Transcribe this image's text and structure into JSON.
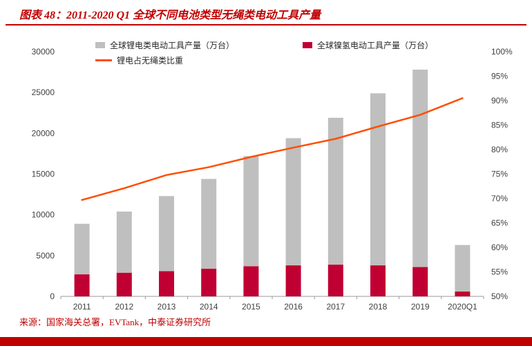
{
  "header": {
    "title": "图表 48：2011-2020 Q1 全球不同电池类型无绳类电动工具产量"
  },
  "footer": {
    "source": "来源：国家海关总署，EVTank，中泰证券研究所"
  },
  "colors": {
    "title_red": "#C00000",
    "rule_red": "#C00000",
    "footer_bar_red": "#C00000",
    "bar_gray": "#BFBFBF",
    "bar_crimson": "#C00032",
    "line_orange": "#FF4E00",
    "axis_text": "#404040"
  },
  "chart_data": {
    "type": "bar",
    "subtype": "stacked-bar-with-overlay-line",
    "title": "图表 48：2011-2020 Q1 全球不同电池类型无绳类电动工具产量",
    "categories": [
      "2011",
      "2012",
      "2013",
      "2014",
      "2015",
      "2016",
      "2017",
      "2018",
      "2019",
      "2020Q1"
    ],
    "series": [
      {
        "name": "全球锂电类电动工具产量（万台）",
        "type": "bar",
        "stack_order": "top",
        "axis": "left",
        "color": "#BFBFBF",
        "values": [
          6200,
          7500,
          9200,
          11000,
          13500,
          15600,
          18000,
          21100,
          24200,
          5700
        ]
      },
      {
        "name": "全球镍氢电动工具产量（万台）",
        "type": "bar",
        "stack_order": "bottom",
        "axis": "left",
        "color": "#C00032",
        "values": [
          2700,
          2900,
          3100,
          3400,
          3700,
          3800,
          3900,
          3800,
          3600,
          600
        ]
      },
      {
        "name": "锂电占无绳类比重",
        "type": "line",
        "axis": "right",
        "color": "#FF4E00",
        "values": [
          69.7,
          72.1,
          74.8,
          76.4,
          78.5,
          80.4,
          82.2,
          84.7,
          87.1,
          90.5
        ]
      }
    ],
    "left_axis": {
      "min": 0,
      "max": 30000,
      "step": 5000
    },
    "right_axis": {
      "min": 50,
      "max": 100,
      "step": 5,
      "suffix": "%"
    },
    "legend_position": "top",
    "grid": false
  }
}
